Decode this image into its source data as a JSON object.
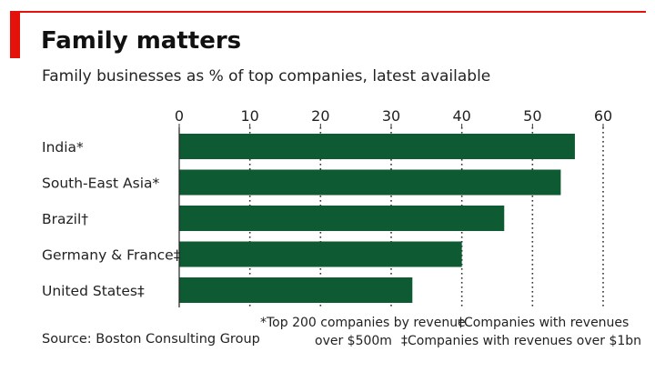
{
  "header": {
    "title": "Family matters",
    "subtitle": "Family businesses as % of top companies, latest available"
  },
  "colors": {
    "accent": "#e3120b",
    "bar": "#0e5a32",
    "text": "#222222"
  },
  "chart_data": {
    "type": "bar",
    "orientation": "horizontal",
    "categories": [
      "India*",
      "South-East Asia*",
      "Brazil†",
      "Germany & France‡",
      "United States‡"
    ],
    "values": [
      56,
      54,
      46,
      40,
      33
    ],
    "x_ticks": [
      0,
      10,
      20,
      30,
      40,
      50,
      60
    ],
    "xlim": [
      0,
      60
    ],
    "grid": "vertical dotted",
    "tick_position": "top"
  },
  "footer": {
    "source": "Source: Boston Consulting Group",
    "note_star_1": "*Top 200 companies by revenue",
    "note_star_2": "over $500m",
    "note_dagger": "†Companies with revenues",
    "note_ddagger": "‡Companies with revenues over $1bn"
  }
}
